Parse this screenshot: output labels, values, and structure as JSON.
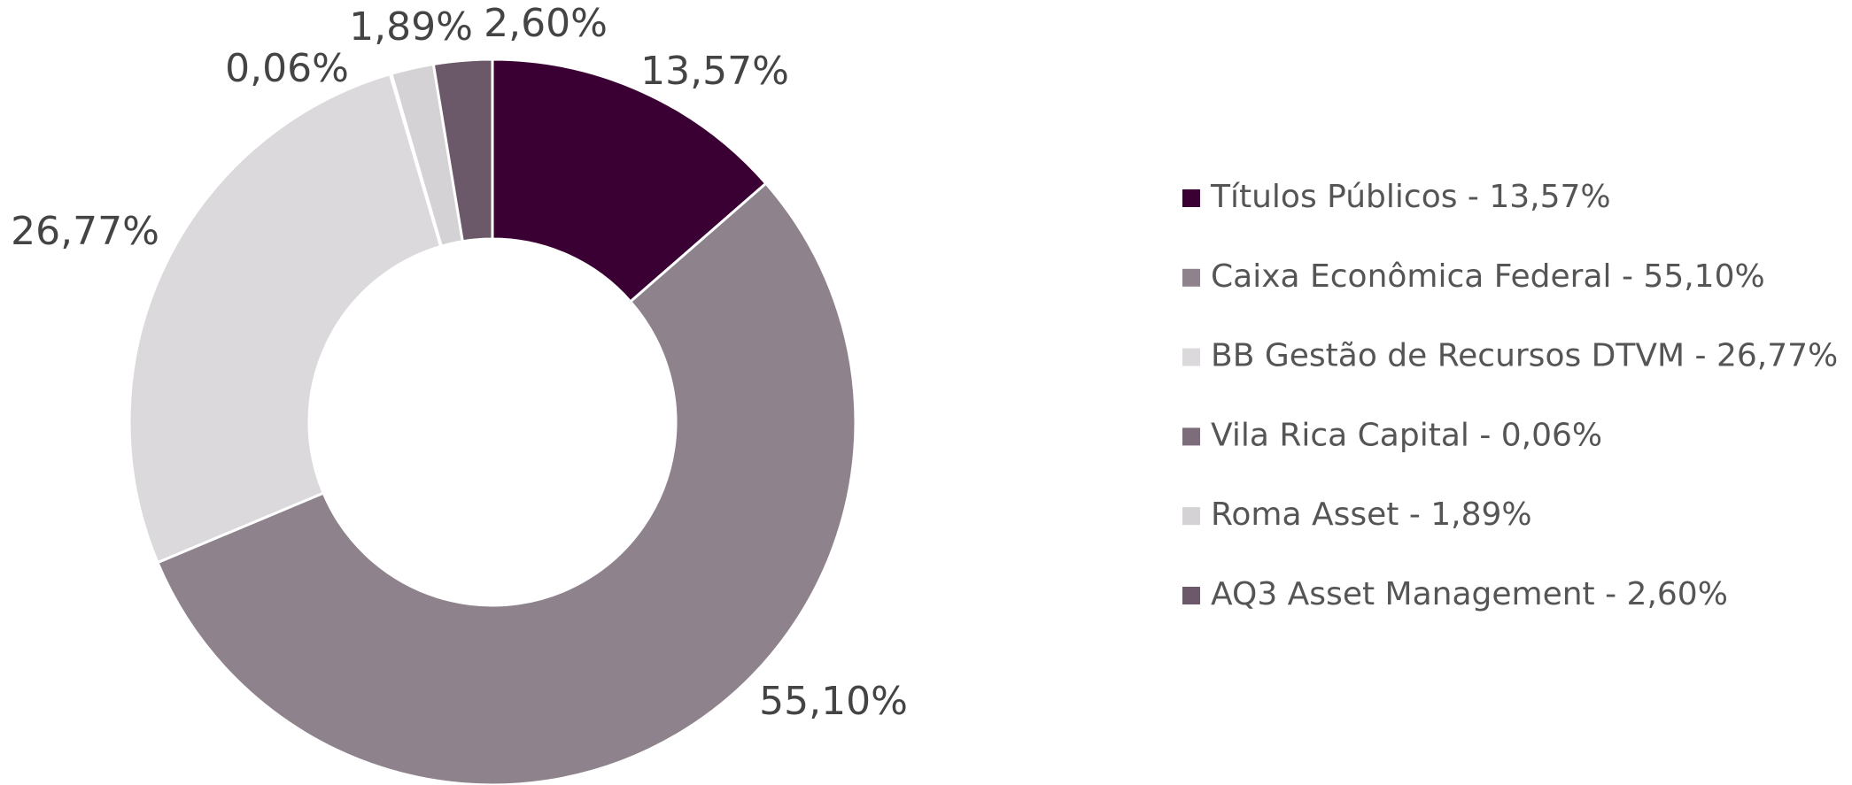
{
  "chart_data": {
    "type": "donut",
    "categories": [
      "Títulos Públicos - 13,57%",
      "Caixa Econômica Federal - 55,10%",
      "BB Gestão de Recursos DTVM - 26,77%",
      "Vila Rica Capital - 0,06%",
      "Roma Asset - 1,89%",
      "AQ3 Asset Management - 2,60%"
    ],
    "values": [
      13.57,
      55.1,
      26.77,
      0.06,
      1.89,
      2.6
    ],
    "value_labels": [
      "13,57%",
      "55,10%",
      "26,77%",
      "0,06%",
      "1,89%",
      "2,60%"
    ],
    "colors": [
      "#3b0033",
      "#8e828c",
      "#dcd9dd",
      "#7d6c7a",
      "#d4d2d4",
      "#6b5868"
    ],
    "legend": "right"
  }
}
